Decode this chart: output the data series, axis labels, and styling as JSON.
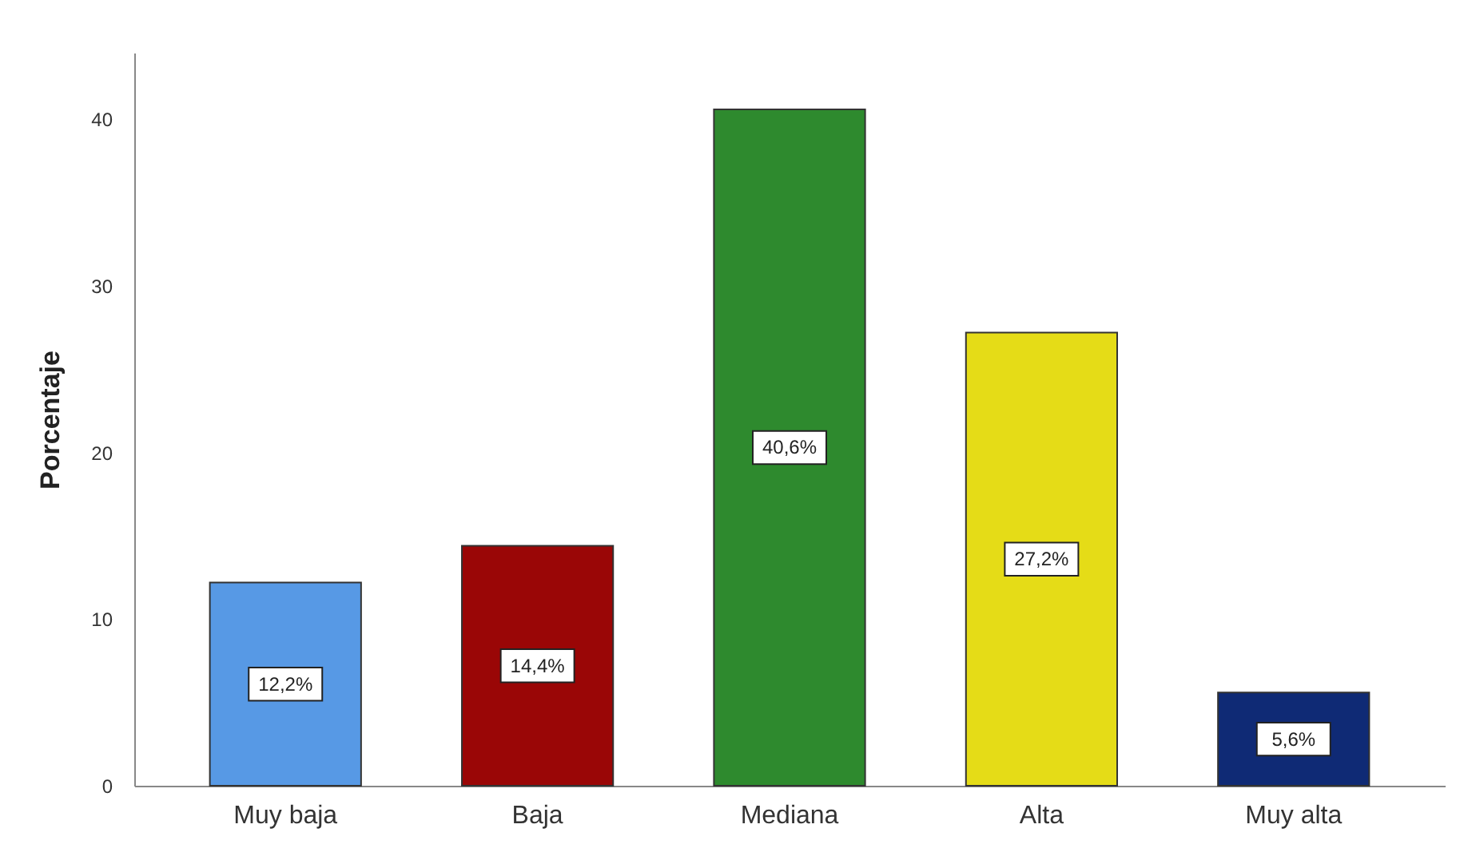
{
  "chart_data": {
    "type": "bar",
    "ylabel": "Porcentaje",
    "categories": [
      "Muy baja",
      "Baja",
      "Mediana",
      "Alta",
      "Muy alta"
    ],
    "values": [
      12.2,
      14.4,
      40.6,
      27.2,
      5.6
    ],
    "colors": [
      "#5799e5",
      "#9a0606",
      "#2e8a2e",
      "#e5dc17",
      "#0f2a75"
    ],
    "value_labels": [
      "12,2%",
      "14,4%",
      "40,6%",
      "27,2%",
      "5,6%"
    ],
    "ylim": [
      0,
      44
    ],
    "yticks": [
      0,
      10,
      20,
      30,
      40
    ]
  }
}
